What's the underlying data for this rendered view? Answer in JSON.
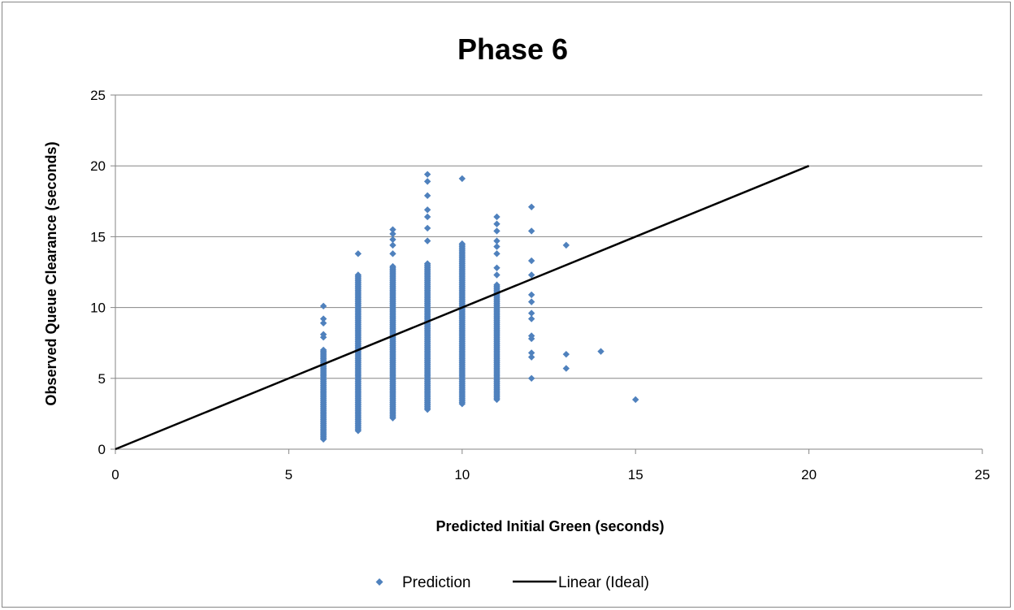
{
  "chart_data": {
    "type": "scatter",
    "title": "Phase 6",
    "xlabel": "Predicted Initial Green (seconds)",
    "ylabel": "Observed Queue Clearance (seconds)",
    "xlim": [
      0,
      25
    ],
    "ylim": [
      0,
      25
    ],
    "x_ticks": [
      "0",
      "5",
      "10",
      "15",
      "20",
      "25"
    ],
    "y_ticks": [
      "0",
      "5",
      "10",
      "15",
      "20",
      "25"
    ],
    "grid": "horizontal",
    "legend_position": "bottom",
    "colors": {
      "scatter": "#4F81BD",
      "line": "#000000",
      "grid": "#868686"
    },
    "series": [
      {
        "name": "Prediction",
        "kind": "scatter",
        "marker": "diamond",
        "columns": [
          {
            "x": 6,
            "y_min": 0.7,
            "y_max": 7.0,
            "extra_y": [
              7.9,
              8.1,
              8.9,
              9.2,
              10.1
            ]
          },
          {
            "x": 7,
            "y_min": 1.3,
            "y_max": 12.3,
            "extra_y": [
              13.8
            ]
          },
          {
            "x": 8,
            "y_min": 2.2,
            "y_max": 12.9,
            "extra_y": [
              13.8,
              14.4,
              14.8,
              15.2,
              15.5
            ]
          },
          {
            "x": 9,
            "y_min": 2.8,
            "y_max": 13.1,
            "extra_y": [
              14.7,
              15.6,
              16.4,
              16.9,
              17.9,
              18.9,
              19.4
            ]
          },
          {
            "x": 10,
            "y_min": 3.2,
            "y_max": 14.5,
            "extra_y": [
              19.1
            ]
          },
          {
            "x": 11,
            "y_min": 3.5,
            "y_max": 11.6,
            "extra_y": [
              12.3,
              12.8,
              13.8,
              14.3,
              14.7,
              15.4,
              15.9,
              16.4
            ]
          },
          {
            "x": 12,
            "y_min": 5.0,
            "y_max": 5.0,
            "extra_y": [
              6.5,
              6.8,
              7.8,
              8.0,
              9.2,
              9.6,
              10.4,
              10.9,
              12.3,
              13.3,
              15.4,
              17.1
            ]
          },
          {
            "x": 13,
            "y_min": 5.7,
            "y_max": 5.7,
            "extra_y": [
              6.7,
              14.4
            ]
          },
          {
            "x": 14,
            "y_min": 6.9,
            "y_max": 6.9,
            "extra_y": []
          },
          {
            "x": 15,
            "y_min": 3.5,
            "y_max": 3.5,
            "extra_y": []
          }
        ]
      },
      {
        "name": "Linear (Ideal)",
        "kind": "line",
        "x": [
          0,
          20
        ],
        "values": [
          0,
          20
        ]
      }
    ]
  }
}
